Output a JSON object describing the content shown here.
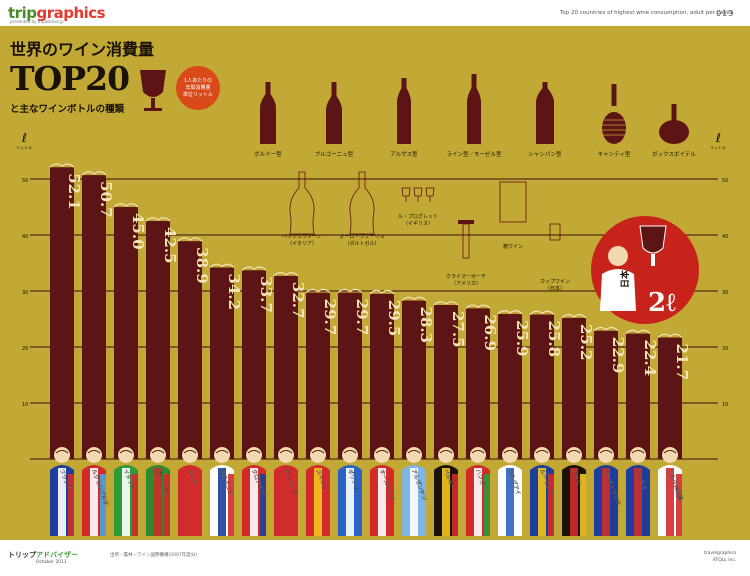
{
  "header": {
    "logo_main": "trip",
    "logo_accent": "graphics",
    "logo_sub": "presented by tripadvisor.jp",
    "caption": "Top 20 countries of highest wine consumption, adult per capita",
    "page_number": "013"
  },
  "poster": {
    "title_jp": "世界のワイン消費量",
    "title_top": "TOP20",
    "subtitle": "と主なワインボトルの種類",
    "badge_lines": [
      "1人あたりの",
      "年間消費量",
      "単位リットル"
    ],
    "axis_unit_symbol": "ℓ",
    "axis_unit_label": "リットル"
  },
  "bottles_top": [
    {
      "label": "ボルドー型"
    },
    {
      "label": "ブルゴーニュ型"
    },
    {
      "label": "アルザス型"
    },
    {
      "label": "ライン型／モーゼル型"
    },
    {
      "label": "シャンパン型"
    },
    {
      "label": "キャンティ型"
    },
    {
      "label": "ボックスボイテル"
    }
  ],
  "bottles_mid": [
    {
      "label": "ベッシェヴィーノ（イタリア）"
    },
    {
      "label": "オーロ・ヴェーリョ（ポルトガル）"
    },
    {
      "label": "ル・プログレット（イギリス）"
    },
    {
      "label": "クライマーボーチ（アメリカ）"
    },
    {
      "label": "箱ワイン"
    },
    {
      "label": "カップワイン（日本）"
    }
  ],
  "japan": {
    "label": "日本",
    "value_text": "2ℓ",
    "color": "#c8231b"
  },
  "colors": {
    "background": "#c2a834",
    "bar": "#5c1414",
    "gridline": "#3a0e0e",
    "value_text": "#f3e3b6"
  },
  "chart_data": {
    "type": "bar",
    "title": "世界のワイン消費量 TOP20",
    "ylabel": "リットル",
    "ylim": [
      0,
      55
    ],
    "yticks": [
      0,
      10,
      20,
      30,
      40,
      50
    ],
    "grid": true,
    "categories": [
      "フランス",
      "ルクセンブルク",
      "イタリア",
      "ポルトガル",
      "スイス",
      "スロベニア",
      "クロアチア",
      "デンマーク",
      "スペイン",
      "ギリシャ",
      "オーストリア",
      "アルゼンチン",
      "ベルギー",
      "ハンガリー",
      "ウルグアイ",
      "ルーマニア",
      "ドイツ",
      "オーストラリア",
      "イギリス",
      "マルタ共和国"
    ],
    "values": [
      52.1,
      50.7,
      45.0,
      42.5,
      38.9,
      34.2,
      33.7,
      32.7,
      29.7,
      29.7,
      29.5,
      28.3,
      27.5,
      26.9,
      25.9,
      25.8,
      25.2,
      22.9,
      22.4,
      21.7
    ],
    "value_labels": [
      "52.1",
      "50.7",
      "45.0",
      "42.5",
      "38.9",
      "34.2",
      "33.7",
      "32.7",
      "29.7",
      "29.7",
      "29.5",
      "28.3",
      "27.5",
      "26.9",
      "25.9",
      "25.8",
      "25.2",
      "22.9",
      "22.4",
      "21.7"
    ]
  },
  "footer": {
    "brand_main": "トリップ",
    "brand_accent": "アドバイザー",
    "date": "October 2011",
    "source": "出所／農林・ワイン国際機構(2007年度分)",
    "credit_line1": "travelgraphics",
    "credit_line2": "ATOLL Inc."
  }
}
